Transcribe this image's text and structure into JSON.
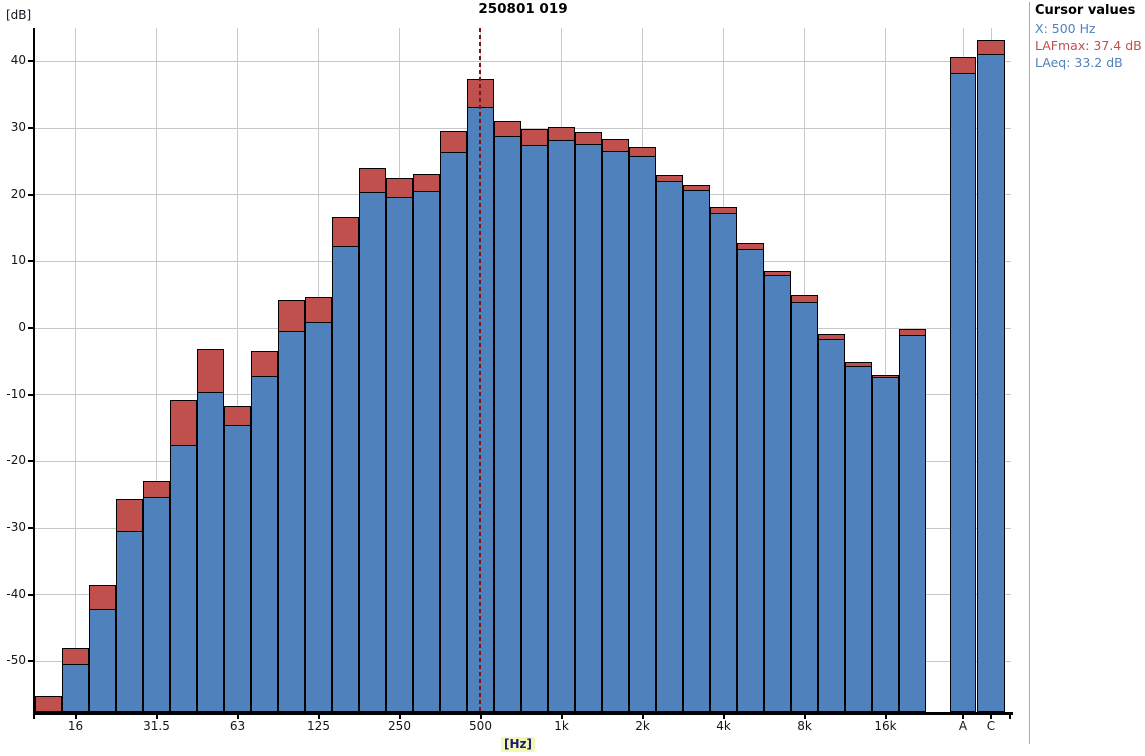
{
  "title": "250801 019",
  "y_axis": {
    "unit_label": "[dB]",
    "ticks": [
      40,
      30,
      20,
      10,
      0,
      -10,
      -20,
      -30,
      -40,
      -50
    ]
  },
  "x_axis": {
    "unit_label": "[Hz]"
  },
  "cursor_panel": {
    "heading": "Cursor values",
    "x_line": "X: 500 Hz",
    "lafmax_line": "LAFmax: 37.4 dB",
    "laeq_line": "LAeq: 33.2 dB"
  },
  "colors": {
    "laeq_bar": "#4f81bd",
    "lafmax_bar": "#c0504d",
    "bar_border": "#000000",
    "gridline": "#c8c8c8",
    "cursor_line": "#7d1518",
    "panel_blue_text": "#4f81bd",
    "panel_red_text": "#c0504d",
    "hz_label_highlight": "#f3f8b4"
  },
  "chart_data": {
    "type": "bar",
    "subtype": "stacked-third-octave-spectrum",
    "title": "250801 019",
    "xlabel": "[Hz]",
    "ylabel": "[dB]",
    "ylim": [
      -57.6,
      45
    ],
    "y_ticks": [
      40,
      30,
      20,
      10,
      0,
      -10,
      -20,
      -30,
      -40,
      -50
    ],
    "grid": true,
    "legend": false,
    "categories": [
      "12.5",
      "16",
      "20",
      "25",
      "31.5",
      "40",
      "50",
      "63",
      "80",
      "100",
      "125",
      "160",
      "200",
      "250",
      "315",
      "400",
      "500",
      "630",
      "800",
      "1k",
      "1.25k",
      "1.6k",
      "2k",
      "2.5k",
      "3.15k",
      "4k",
      "5k",
      "6.3k",
      "8k",
      "10k",
      "12.5k",
      "16k",
      "20k"
    ],
    "labeled_tick_indices": [
      1,
      4,
      7,
      10,
      13,
      16,
      19,
      22,
      25,
      28,
      31
    ],
    "series": [
      {
        "name": "LAeq",
        "color": "#4f81bd",
        "values": [
          -57.6,
          -50.4,
          -42.2,
          -30.5,
          -25.3,
          -17.6,
          -9.6,
          -14.6,
          -7.2,
          -0.5,
          0.9,
          12.3,
          20.4,
          19.6,
          20.5,
          26.4,
          33.2,
          28.8,
          27.5,
          28.2,
          27.6,
          26.6,
          25.8,
          22.1,
          20.7,
          17.3,
          11.8,
          7.9,
          3.9,
          -1.6,
          -5.7,
          -7.4,
          -1.1
        ]
      },
      {
        "name": "LAFmax",
        "color": "#c0504d",
        "values": [
          -55.2,
          -48.0,
          -38.6,
          -25.7,
          -22.9,
          -10.8,
          -3.1,
          -11.7,
          -3.5,
          4.2,
          4.6,
          16.6,
          24.0,
          22.5,
          23.1,
          29.5,
          37.4,
          31.0,
          29.9,
          30.2,
          29.4,
          28.4,
          27.2,
          23.0,
          21.4,
          18.1,
          12.7,
          8.6,
          4.9,
          -0.9,
          -5.1,
          -7.1,
          -0.1
        ]
      }
    ],
    "totals": {
      "categories": [
        "A",
        "C"
      ],
      "LAeq": [
        38.3,
        41.1
      ],
      "LAFmax": [
        40.6,
        43.2
      ]
    },
    "cursor": {
      "category": "500",
      "LAFmax": 37.4,
      "LAeq": 33.2
    }
  }
}
